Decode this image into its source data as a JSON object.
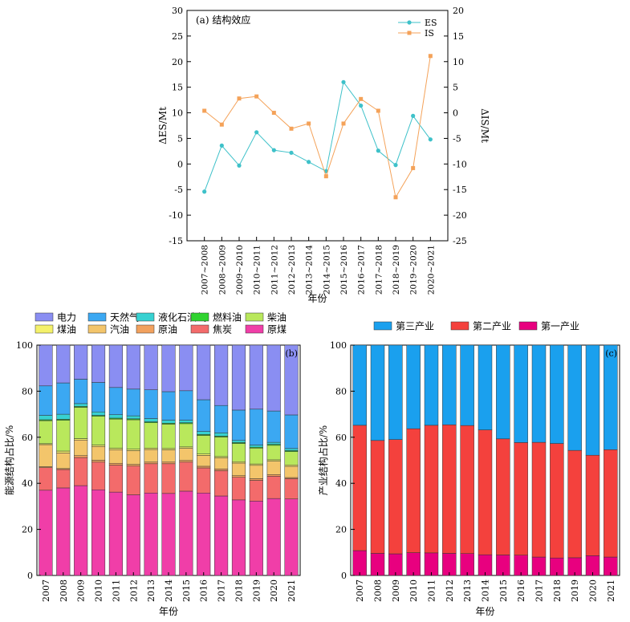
{
  "chart_data": [
    {
      "id": "a",
      "type": "line",
      "panel_label": "(a) 结构效应",
      "xlabel": "年份",
      "ylabel_left": "ΔES/Mt",
      "ylabel_right": "ΔIS/Mt",
      "ylim_left": [
        -15,
        30
      ],
      "ylim_right": [
        -25,
        20
      ],
      "yticks_left": [
        -15,
        -10,
        -5,
        0,
        5,
        10,
        15,
        20,
        25,
        30
      ],
      "yticks_right": [
        -25,
        -20,
        -15,
        -10,
        -5,
        0,
        5,
        10,
        15,
        20
      ],
      "categories": [
        "2007~2008",
        "2008~2009",
        "2009~2010",
        "2010~2011",
        "2011~2012",
        "2012~2013",
        "2013~2014",
        "2014~2015",
        "2015~2016",
        "2016~2017",
        "2017~2018",
        "2018~2019",
        "2019~2020",
        "2020~2021"
      ],
      "legend_position": "top-right",
      "series": [
        {
          "name": "ES",
          "axis": "left",
          "color": "#3ec1c9",
          "marker": "circle",
          "values": [
            -5.4,
            3.6,
            -0.3,
            6.2,
            2.7,
            2.2,
            0.4,
            -1.4,
            16.0,
            11.4,
            2.6,
            -0.2,
            9.4,
            4.8
          ]
        },
        {
          "name": "IS",
          "axis": "right",
          "color": "#f4a259",
          "marker": "square",
          "values": [
            0.4,
            -2.3,
            2.8,
            3.2,
            0.0,
            -3.1,
            -2.1,
            -12.4,
            -2.1,
            2.7,
            0.4,
            -16.5,
            -10.8,
            11.1
          ]
        }
      ]
    },
    {
      "id": "b",
      "type": "bar",
      "stacked": true,
      "panel_label": "(b)",
      "xlabel": "年份",
      "ylabel": "能源结构占比/%",
      "ylim": [
        0,
        100
      ],
      "yticks": [
        0,
        20,
        40,
        60,
        80,
        100
      ],
      "categories": [
        "2007",
        "2008",
        "2009",
        "2010",
        "2011",
        "2012",
        "2013",
        "2014",
        "2015",
        "2016",
        "2017",
        "2018",
        "2019",
        "2020",
        "2021"
      ],
      "legend_position": "top",
      "legend_order": [
        "电力",
        "天然气",
        "液化石油气",
        "燃料油",
        "柴油",
        "煤油",
        "汽油",
        "原油",
        "焦炭",
        "原煤"
      ],
      "series": [
        {
          "name": "原煤",
          "color": "#f03ea8",
          "values": [
            37.0,
            38.0,
            39.0,
            37.2,
            36.2,
            35.0,
            35.8,
            35.6,
            36.6,
            35.8,
            34.5,
            32.8,
            32.3,
            33.4,
            33.2
          ]
        },
        {
          "name": "焦炭",
          "color": "#f36b6b",
          "values": [
            9.8,
            8.0,
            12.2,
            12.0,
            11.7,
            12.5,
            12.7,
            12.9,
            12.6,
            10.9,
            11.0,
            9.8,
            9.0,
            9.7,
            8.8
          ]
        },
        {
          "name": "原油",
          "color": "#f2a15e",
          "values": [
            0.4,
            0.4,
            0.8,
            0.8,
            0.8,
            0.7,
            0.7,
            0.7,
            0.7,
            0.7,
            0.7,
            0.7,
            0.7,
            0.7,
            0.5
          ]
        },
        {
          "name": "汽油",
          "color": "#f3c56b",
          "values": [
            9.6,
            6.8,
            6.8,
            6.0,
            5.9,
            6.0,
            5.5,
            5.3,
            5.3,
            4.7,
            4.8,
            5.5,
            5.8,
            5.8,
            4.9
          ]
        },
        {
          "name": "煤油",
          "color": "#f4f16a",
          "values": [
            0.4,
            0.8,
            0.6,
            0.6,
            0.6,
            0.6,
            0.6,
            0.6,
            0.6,
            0.6,
            0.6,
            0.6,
            0.6,
            0.6,
            0.6
          ]
        },
        {
          "name": "柴油",
          "color": "#b9e85c",
          "values": [
            10.0,
            13.4,
            13.6,
            12.5,
            12.7,
            12.8,
            11.0,
            10.6,
            10.1,
            8.1,
            8.5,
            7.9,
            6.9,
            6.3,
            5.8
          ]
        },
        {
          "name": "燃料油",
          "color": "#2fd32f",
          "values": [
            0.4,
            0.4,
            0.4,
            0.4,
            0.4,
            0.4,
            0.4,
            0.4,
            0.4,
            0.4,
            0.4,
            0.4,
            0.4,
            0.4,
            0.4
          ]
        },
        {
          "name": "液化石油气",
          "color": "#37d1d1",
          "values": [
            1.9,
            2.2,
            1.2,
            1.5,
            1.5,
            1.3,
            1.4,
            1.3,
            1.1,
            1.3,
            1.4,
            0.9,
            0.9,
            0.9,
            0.9
          ]
        },
        {
          "name": "天然气",
          "color": "#3ba8f2",
          "values": [
            12.8,
            13.6,
            10.6,
            12.8,
            11.8,
            11.6,
            12.5,
            12.4,
            12.8,
            13.8,
            11.9,
            13.2,
            15.6,
            13.6,
            14.6
          ]
        },
        {
          "name": "电力",
          "color": "#8a8ef2",
          "values": [
            17.7,
            16.4,
            14.8,
            16.2,
            18.4,
            19.1,
            19.4,
            20.2,
            19.8,
            23.7,
            26.2,
            28.2,
            27.8,
            28.6,
            30.3
          ]
        }
      ]
    },
    {
      "id": "c",
      "type": "bar",
      "stacked": true,
      "panel_label": "(c)",
      "xlabel": "年份",
      "ylabel": "产业结构占比/%",
      "ylim": [
        0,
        100
      ],
      "yticks": [
        0,
        20,
        40,
        60,
        80,
        100
      ],
      "categories": [
        "2007",
        "2008",
        "2009",
        "2010",
        "2011",
        "2012",
        "2013",
        "2014",
        "2015",
        "2016",
        "2017",
        "2018",
        "2019",
        "2020",
        "2021"
      ],
      "legend_position": "top",
      "legend_order": [
        "第三产业",
        "第二产业",
        "第一产业"
      ],
      "series": [
        {
          "name": "第一产业",
          "color": "#e8007f",
          "values": [
            10.8,
            9.6,
            9.4,
            9.9,
            9.8,
            9.6,
            9.5,
            9.0,
            8.9,
            8.8,
            8.0,
            7.6,
            7.7,
            8.6,
            8.0
          ]
        },
        {
          "name": "第二产业",
          "color": "#f4413d",
          "values": [
            54.4,
            49.0,
            49.6,
            53.8,
            55.4,
            55.8,
            55.6,
            54.2,
            50.4,
            48.9,
            49.8,
            49.7,
            46.6,
            43.6,
            46.6
          ]
        },
        {
          "name": "第三产业",
          "color": "#1aa0ee",
          "values": [
            34.8,
            41.4,
            41.0,
            36.3,
            34.8,
            34.6,
            34.9,
            36.8,
            40.7,
            42.3,
            42.2,
            42.7,
            45.7,
            47.8,
            45.4
          ]
        }
      ]
    }
  ]
}
